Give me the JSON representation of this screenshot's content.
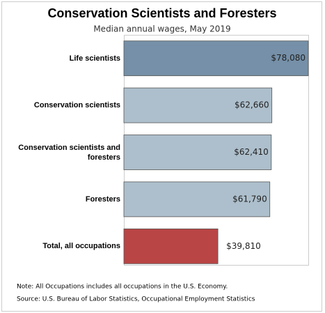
{
  "chart_data": {
    "type": "bar",
    "orientation": "horizontal",
    "title": "Conservation Scientists and Foresters",
    "subtitle": "Median annual wages, May 2019",
    "categories": [
      "Life scientists",
      "Conservation scientists",
      "Conservation scientists and foresters",
      "Foresters",
      "Total, all occupations"
    ],
    "values": [
      78080,
      62660,
      62410,
      61790,
      39810
    ],
    "value_labels": [
      "$78,080",
      "$62,660",
      "$62,410",
      "$61,790",
      "$39,810"
    ],
    "colors": [
      "#7590a8",
      "#adbfcc",
      "#adbfcc",
      "#adbfcc",
      "#b94545"
    ],
    "notes": [
      "Note: All Occupations includes all occupations in the U.S. Economy.",
      "Source: U.S. Bureau of Labor Statistics, Occupational Employment Statistics"
    ]
  }
}
